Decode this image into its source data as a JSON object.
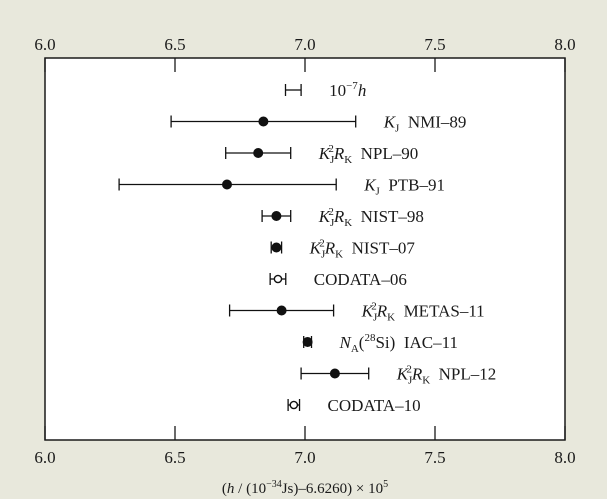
{
  "chart_data": {
    "type": "scatter",
    "subtype": "forest-plot-with-error-bars",
    "title": "",
    "xlabel": "(h / (10^-34 Js)-6.6260) × 10^5",
    "xlim": [
      6.0,
      8.0
    ],
    "xticks": [
      6.0,
      6.5,
      7.0,
      7.5,
      8.0
    ],
    "xtick_labels": [
      "6.0",
      "6.5",
      "7.0",
      "7.5",
      "8.0"
    ],
    "tick_labels_top_and_bottom": true,
    "grid": false,
    "legend": "none",
    "marker_colors": {
      "filled": "#111111",
      "open": "#ffffff",
      "line": "#111111"
    },
    "entries": [
      {
        "label": "10⁻⁷h",
        "value": null,
        "low": 6.925,
        "high": 6.985,
        "marker": "none"
      },
      {
        "label": "K_J NMI–89",
        "value": 6.84,
        "low": 6.485,
        "high": 7.195,
        "marker": "filled"
      },
      {
        "label": "K_J^2 R_K NPL–90",
        "value": 6.82,
        "low": 6.695,
        "high": 6.945,
        "marker": "filled"
      },
      {
        "label": "K_J PTB–91",
        "value": 6.7,
        "low": 6.285,
        "high": 7.12,
        "marker": "filled"
      },
      {
        "label": "K_J^2 R_K NIST–98",
        "value": 6.89,
        "low": 6.835,
        "high": 6.945,
        "marker": "filled"
      },
      {
        "label": "K_J^2 R_K NIST–07",
        "value": 6.89,
        "low": 6.87,
        "high": 6.91,
        "marker": "filled"
      },
      {
        "label": "CODATA–06",
        "value": 6.896,
        "low": 6.866,
        "high": 6.926,
        "marker": "open"
      },
      {
        "label": "K_J^2 R_K METAS–11",
        "value": 6.91,
        "low": 6.71,
        "high": 7.11,
        "marker": "filled"
      },
      {
        "label": "N_A(28Si) IAC–11",
        "value": 7.01,
        "low": 6.995,
        "high": 7.025,
        "marker": "filled"
      },
      {
        "label": "K_J^2 R_K NPL–12",
        "value": 7.115,
        "low": 6.985,
        "high": 7.245,
        "marker": "filled"
      },
      {
        "label": "CODATA–10",
        "value": 6.957,
        "low": 6.935,
        "high": 6.979,
        "marker": "open"
      }
    ]
  }
}
